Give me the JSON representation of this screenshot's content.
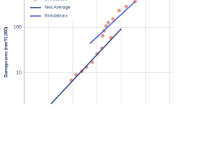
{
  "chart_data": {
    "type": "line",
    "y_label": "Damage area (mm²/1,000)",
    "log_y": true,
    "ylim": [
      2,
      400
    ],
    "yticks": [
      10,
      100
    ],
    "xlim": [
      0,
      6.15
    ],
    "grid": true,
    "legend": "upper left",
    "series": [
      {
        "name": "Simulations",
        "kind": "scatter",
        "color": "#e89a8a",
        "x": [
          1.94,
          2.14,
          2.37,
          2.57,
          2.8,
          3.0,
          3.2,
          3.57,
          3.23,
          3.29,
          3.37,
          3.46,
          3.66,
          3.91,
          4.2,
          4.57
        ],
        "values": [
          6.8,
          9,
          10.7,
          13.3,
          17,
          26,
          34.5,
          59,
          65,
          84,
          107,
          128,
          153,
          234,
          288,
          370
        ]
      },
      {
        "name": "Test Average",
        "kind": "line",
        "color": "#2b3f80",
        "x": [
          1.1,
          4.0
        ],
        "values": [
          2.05,
          93
        ]
      },
      {
        "name": "Simulations",
        "kind": "line",
        "color": "#3d5fd6",
        "x": [
          2.71,
          4.57
        ],
        "values": [
          44,
          370
        ]
      }
    ]
  }
}
